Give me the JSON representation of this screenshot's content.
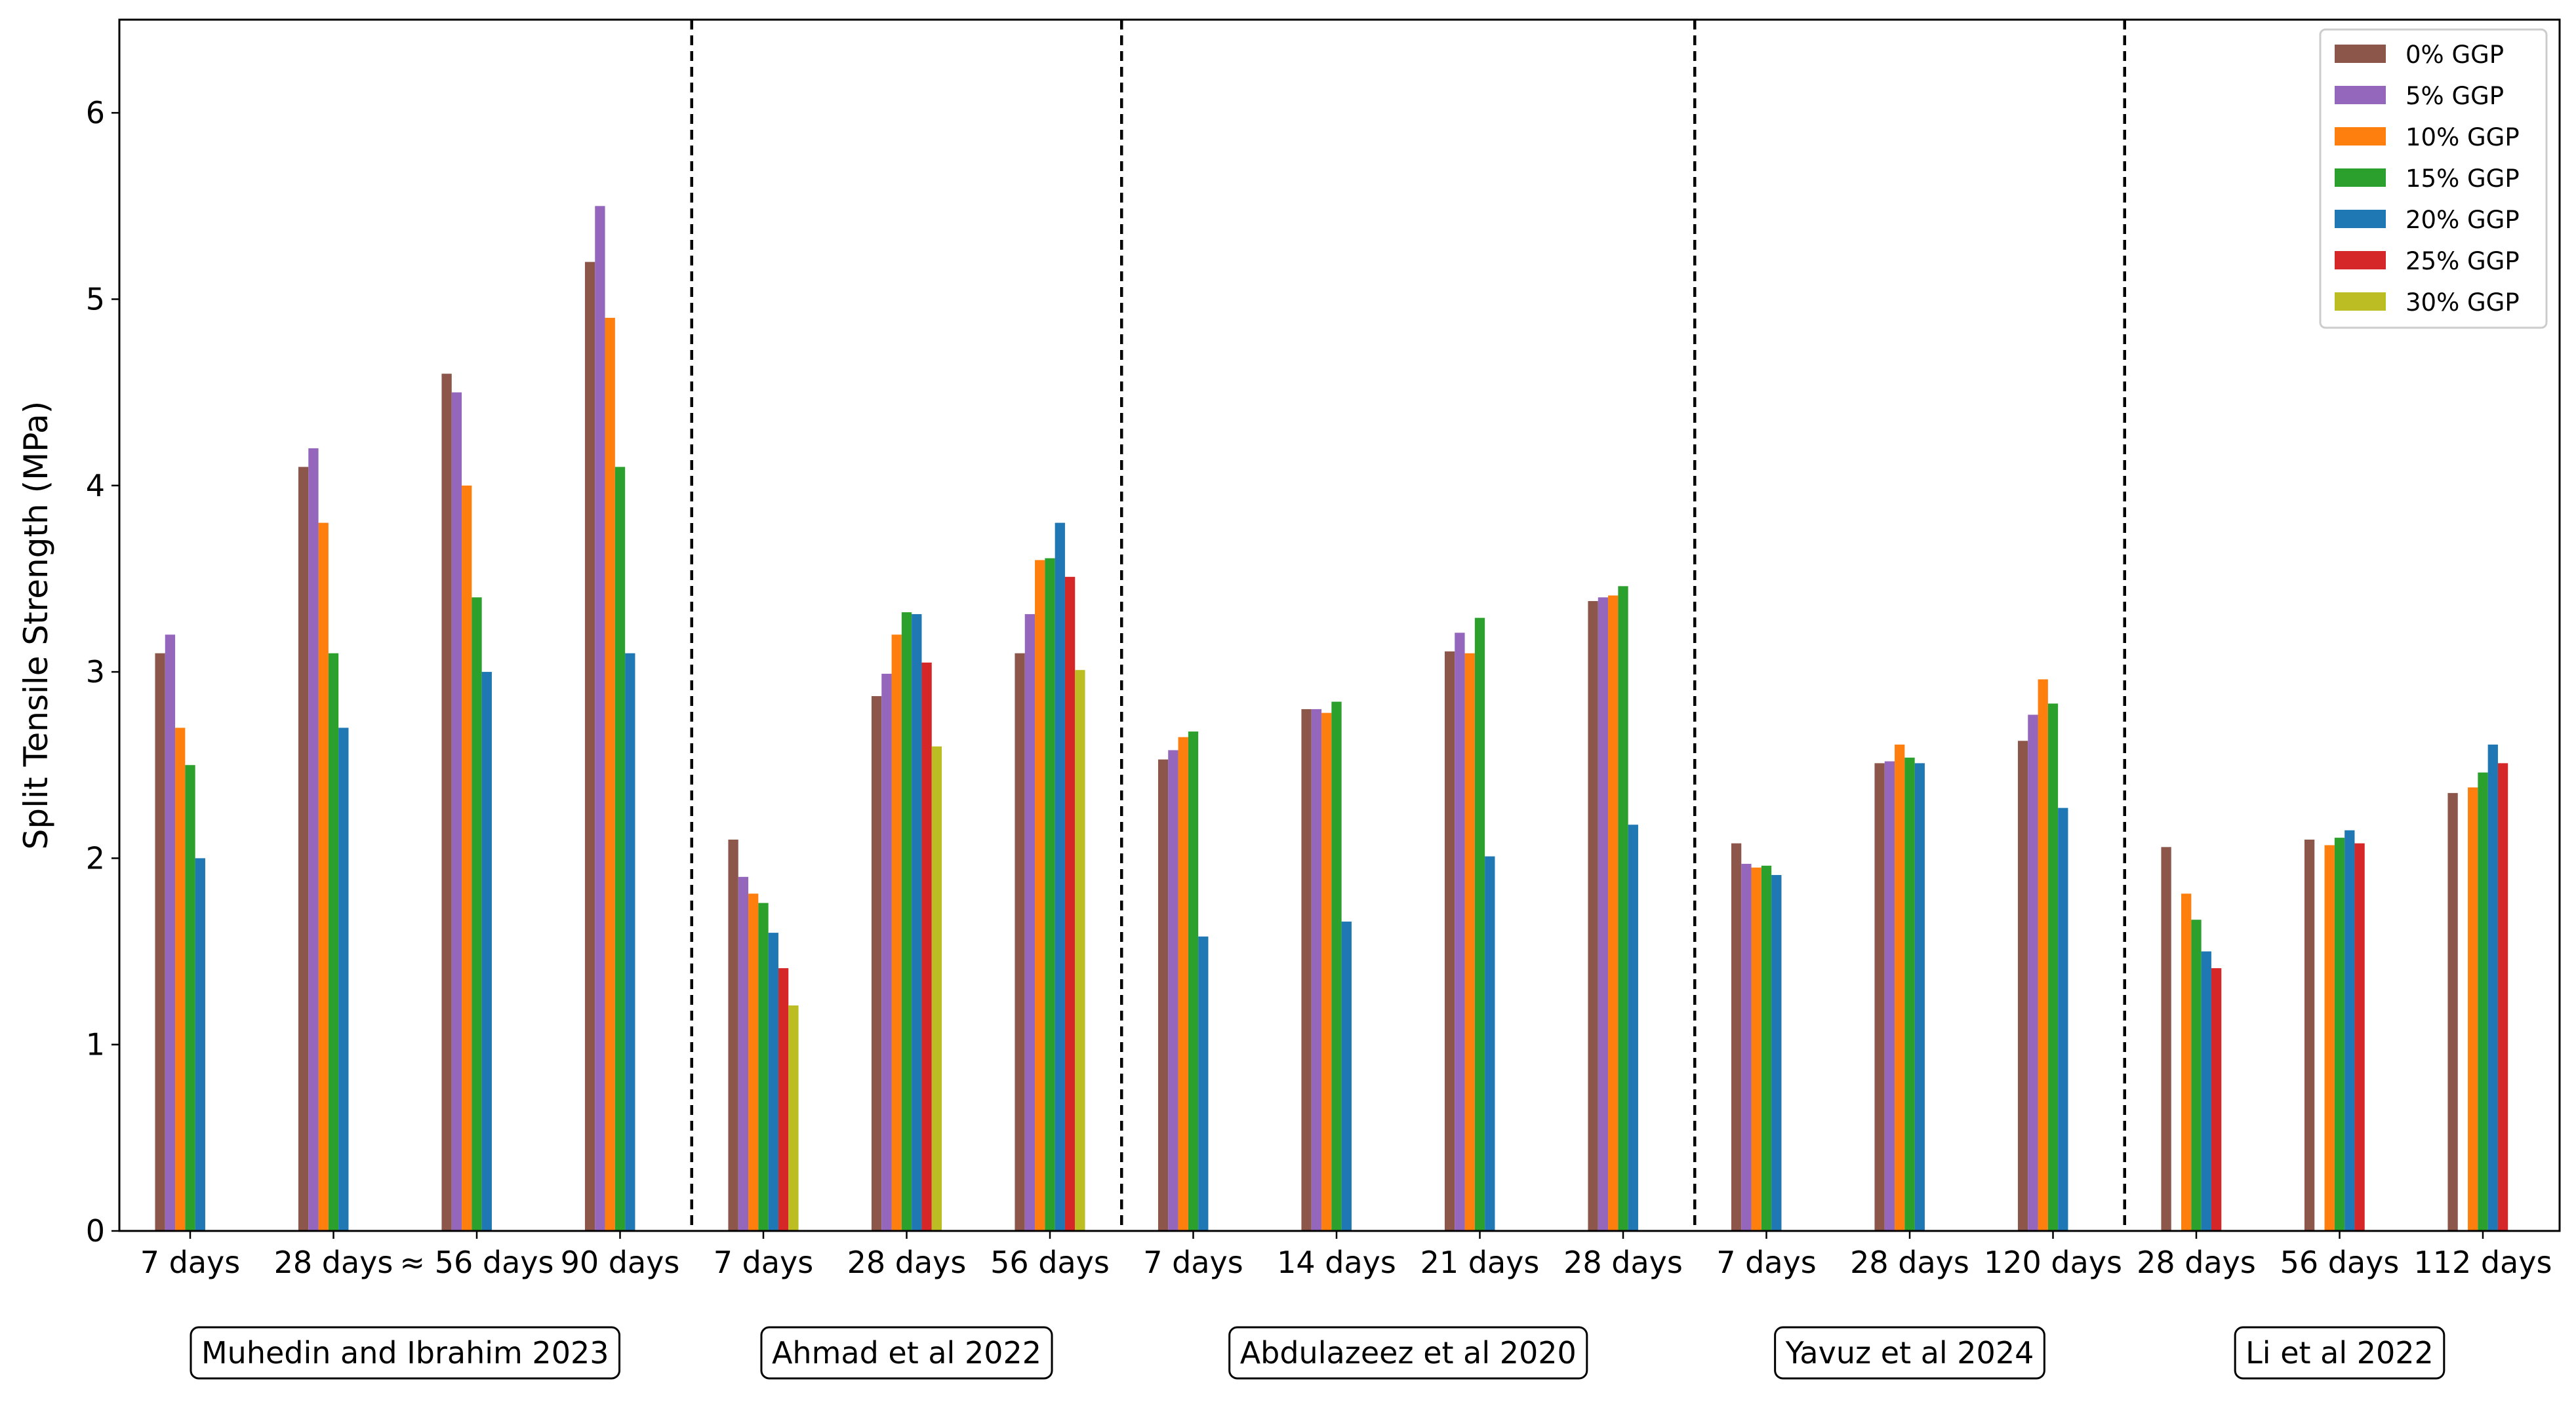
{
  "chart_data": {
    "type": "bar",
    "title": "",
    "xlabel": "",
    "ylabel": "Split Tensile Strength (MPa)",
    "ylim": [
      0,
      6.5
    ],
    "yticks": [
      0,
      1,
      2,
      3,
      4,
      5,
      6
    ],
    "grid": false,
    "legend_position": "top-right",
    "series": [
      {
        "name": "0% GGP",
        "color": "#8c564b"
      },
      {
        "name": "5% GGP",
        "color": "#9467bd"
      },
      {
        "name": "10% GGP",
        "color": "#ff7f0e"
      },
      {
        "name": "15% GGP",
        "color": "#2ca02c"
      },
      {
        "name": "20% GGP",
        "color": "#1f77b4"
      },
      {
        "name": "25% GGP",
        "color": "#d62728"
      },
      {
        "name": "30% GGP",
        "color": "#bcbd22"
      }
    ],
    "groups": [
      {
        "name": "Muhedin and Ibrahim 2023",
        "categories": [
          {
            "label": "7 days",
            "values": [
              3.1,
              3.2,
              2.7,
              2.5,
              2.0,
              null,
              null
            ]
          },
          {
            "label": "28 days",
            "values": [
              4.1,
              4.2,
              3.8,
              3.1,
              2.7,
              null,
              null
            ]
          },
          {
            "label": "≈ 56 days",
            "values": [
              4.6,
              4.5,
              4.0,
              3.4,
              3.0,
              null,
              null
            ]
          },
          {
            "label": "90 days",
            "values": [
              5.2,
              5.5,
              4.9,
              4.1,
              3.1,
              null,
              null
            ]
          }
        ]
      },
      {
        "name": "Ahmad et al 2022",
        "categories": [
          {
            "label": "7 days",
            "values": [
              2.1,
              1.9,
              1.81,
              1.76,
              1.6,
              1.41,
              1.21
            ]
          },
          {
            "label": "28 days",
            "values": [
              2.87,
              2.99,
              3.2,
              3.32,
              3.31,
              3.05,
              2.6
            ]
          },
          {
            "label": "56 days",
            "values": [
              3.1,
              3.31,
              3.6,
              3.61,
              3.8,
              3.51,
              3.01
            ]
          }
        ]
      },
      {
        "name": "Abdulazeez et al 2020",
        "categories": [
          {
            "label": "7 days",
            "values": [
              2.53,
              2.58,
              2.65,
              2.68,
              1.58,
              null,
              null
            ]
          },
          {
            "label": "14 days",
            "values": [
              2.8,
              2.8,
              2.78,
              2.84,
              1.66,
              null,
              null
            ]
          },
          {
            "label": "21 days",
            "values": [
              3.11,
              3.21,
              3.1,
              3.29,
              2.01,
              null,
              null
            ]
          },
          {
            "label": "28 days",
            "values": [
              3.38,
              3.4,
              3.41,
              3.46,
              2.18,
              null,
              null
            ]
          }
        ]
      },
      {
        "name": "Yavuz et al 2024",
        "categories": [
          {
            "label": "7 days",
            "values": [
              2.08,
              1.97,
              1.95,
              1.96,
              1.91,
              null,
              null
            ]
          },
          {
            "label": "28 days",
            "values": [
              2.51,
              2.52,
              2.61,
              2.54,
              2.51,
              null,
              null
            ]
          },
          {
            "label": "120 days",
            "values": [
              2.63,
              2.77,
              2.96,
              2.83,
              2.27,
              null,
              null
            ]
          }
        ]
      },
      {
        "name": "Li et al 2022",
        "categories": [
          {
            "label": "28 days",
            "values": [
              2.06,
              null,
              1.81,
              1.67,
              1.5,
              1.41,
              null
            ]
          },
          {
            "label": "56 days",
            "values": [
              2.1,
              null,
              2.07,
              2.11,
              2.15,
              2.08,
              null
            ]
          },
          {
            "label": "112 days",
            "values": [
              2.35,
              null,
              2.38,
              2.46,
              2.61,
              2.51,
              null
            ]
          }
        ]
      }
    ]
  }
}
